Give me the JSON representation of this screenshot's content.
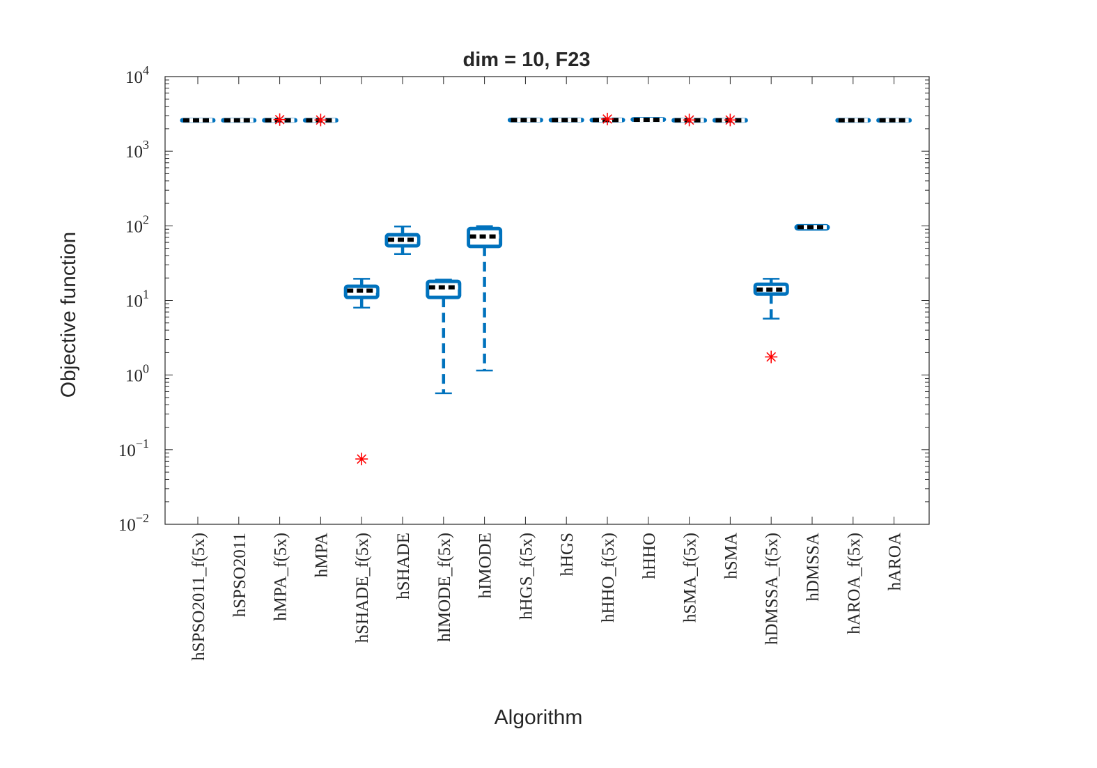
{
  "chart_data": {
    "type": "box",
    "title": "dim = 10,  F23",
    "xlabel": "Algorithm",
    "ylabel": "Objective function",
    "yscale": "log",
    "ylim": [
      0.01,
      10000
    ],
    "yticks": [
      {
        "value": 0.01,
        "base": "10",
        "exp": "−2"
      },
      {
        "value": 0.1,
        "base": "10",
        "exp": "−1"
      },
      {
        "value": 1,
        "base": "10",
        "exp": "0"
      },
      {
        "value": 10,
        "base": "10",
        "exp": "1"
      },
      {
        "value": 100,
        "base": "10",
        "exp": "2"
      },
      {
        "value": 1000,
        "base": "10",
        "exp": "3"
      },
      {
        "value": 10000,
        "base": "10",
        "exp": "4"
      }
    ],
    "grid": false,
    "colors": {
      "box": "#0072BD",
      "median": "#000000",
      "outlier": "#FF0000",
      "axis": "#262626"
    },
    "categories": [
      "hSPSO2011_f(5x)",
      "hSPSO2011",
      "hMPA_f(5x)",
      "hMPA",
      "hSHADE_f(5x)",
      "hSHADE",
      "hIMODE_f(5x)",
      "hIMODE",
      "hHGS_f(5x)",
      "hHGS",
      "hHHO_f(5x)",
      "hHHO",
      "hSMA_f(5x)",
      "hSMA",
      "hDMSSA_f(5x)",
      "hDMSSA",
      "hAROA_f(5x)",
      "hAROA"
    ],
    "boxes": [
      {
        "whisker_low": 2600,
        "q1": 2600,
        "median": 2600,
        "q3": 2600,
        "whisker_high": 2600,
        "outliers": []
      },
      {
        "whisker_low": 2600,
        "q1": 2600,
        "median": 2600,
        "q3": 2600,
        "whisker_high": 2600,
        "outliers": []
      },
      {
        "whisker_low": 2600,
        "q1": 2600,
        "median": 2600,
        "q3": 2600,
        "whisker_high": 2600,
        "outliers": [
          2650
        ]
      },
      {
        "whisker_low": 2600,
        "q1": 2600,
        "median": 2600,
        "q3": 2600,
        "whisker_high": 2600,
        "outliers": [
          2620
        ]
      },
      {
        "whisker_low": 8,
        "q1": 11,
        "median": 13.5,
        "q3": 15.5,
        "whisker_high": 19.5,
        "outliers": [
          0.075
        ]
      },
      {
        "whisker_low": 42,
        "q1": 54,
        "median": 65,
        "q3": 76,
        "whisker_high": 98,
        "outliers": []
      },
      {
        "whisker_low": 0.57,
        "q1": 11,
        "median": 15,
        "q3": 18,
        "whisker_high": 19,
        "outliers": []
      },
      {
        "whisker_low": 1.15,
        "q1": 53,
        "median": 72,
        "q3": 92,
        "whisker_high": 99,
        "outliers": []
      },
      {
        "whisker_low": 2620,
        "q1": 2620,
        "median": 2620,
        "q3": 2620,
        "whisker_high": 2620,
        "outliers": []
      },
      {
        "whisker_low": 2620,
        "q1": 2620,
        "median": 2620,
        "q3": 2620,
        "whisker_high": 2620,
        "outliers": []
      },
      {
        "whisker_low": 2620,
        "q1": 2620,
        "median": 2620,
        "q3": 2620,
        "whisker_high": 2620,
        "outliers": [
          2700
        ]
      },
      {
        "whisker_low": 2620,
        "q1": 2620,
        "median": 2640,
        "q3": 2660,
        "whisker_high": 2670,
        "outliers": []
      },
      {
        "whisker_low": 2600,
        "q1": 2600,
        "median": 2600,
        "q3": 2600,
        "whisker_high": 2600,
        "outliers": [
          2620
        ]
      },
      {
        "whisker_low": 2600,
        "q1": 2600,
        "median": 2600,
        "q3": 2600,
        "whisker_high": 2600,
        "outliers": [
          2620
        ]
      },
      {
        "whisker_low": 5.7,
        "q1": 12.2,
        "median": 14,
        "q3": 16.5,
        "whisker_high": 19.5,
        "outliers": [
          1.75
        ]
      },
      {
        "whisker_low": 91,
        "q1": 91,
        "median": 96,
        "q3": 100,
        "whisker_high": 101,
        "outliers": []
      },
      {
        "whisker_low": 2600,
        "q1": 2600,
        "median": 2600,
        "q3": 2600,
        "whisker_high": 2600,
        "outliers": []
      },
      {
        "whisker_low": 2600,
        "q1": 2600,
        "median": 2600,
        "q3": 2600,
        "whisker_high": 2600,
        "outliers": []
      }
    ]
  }
}
